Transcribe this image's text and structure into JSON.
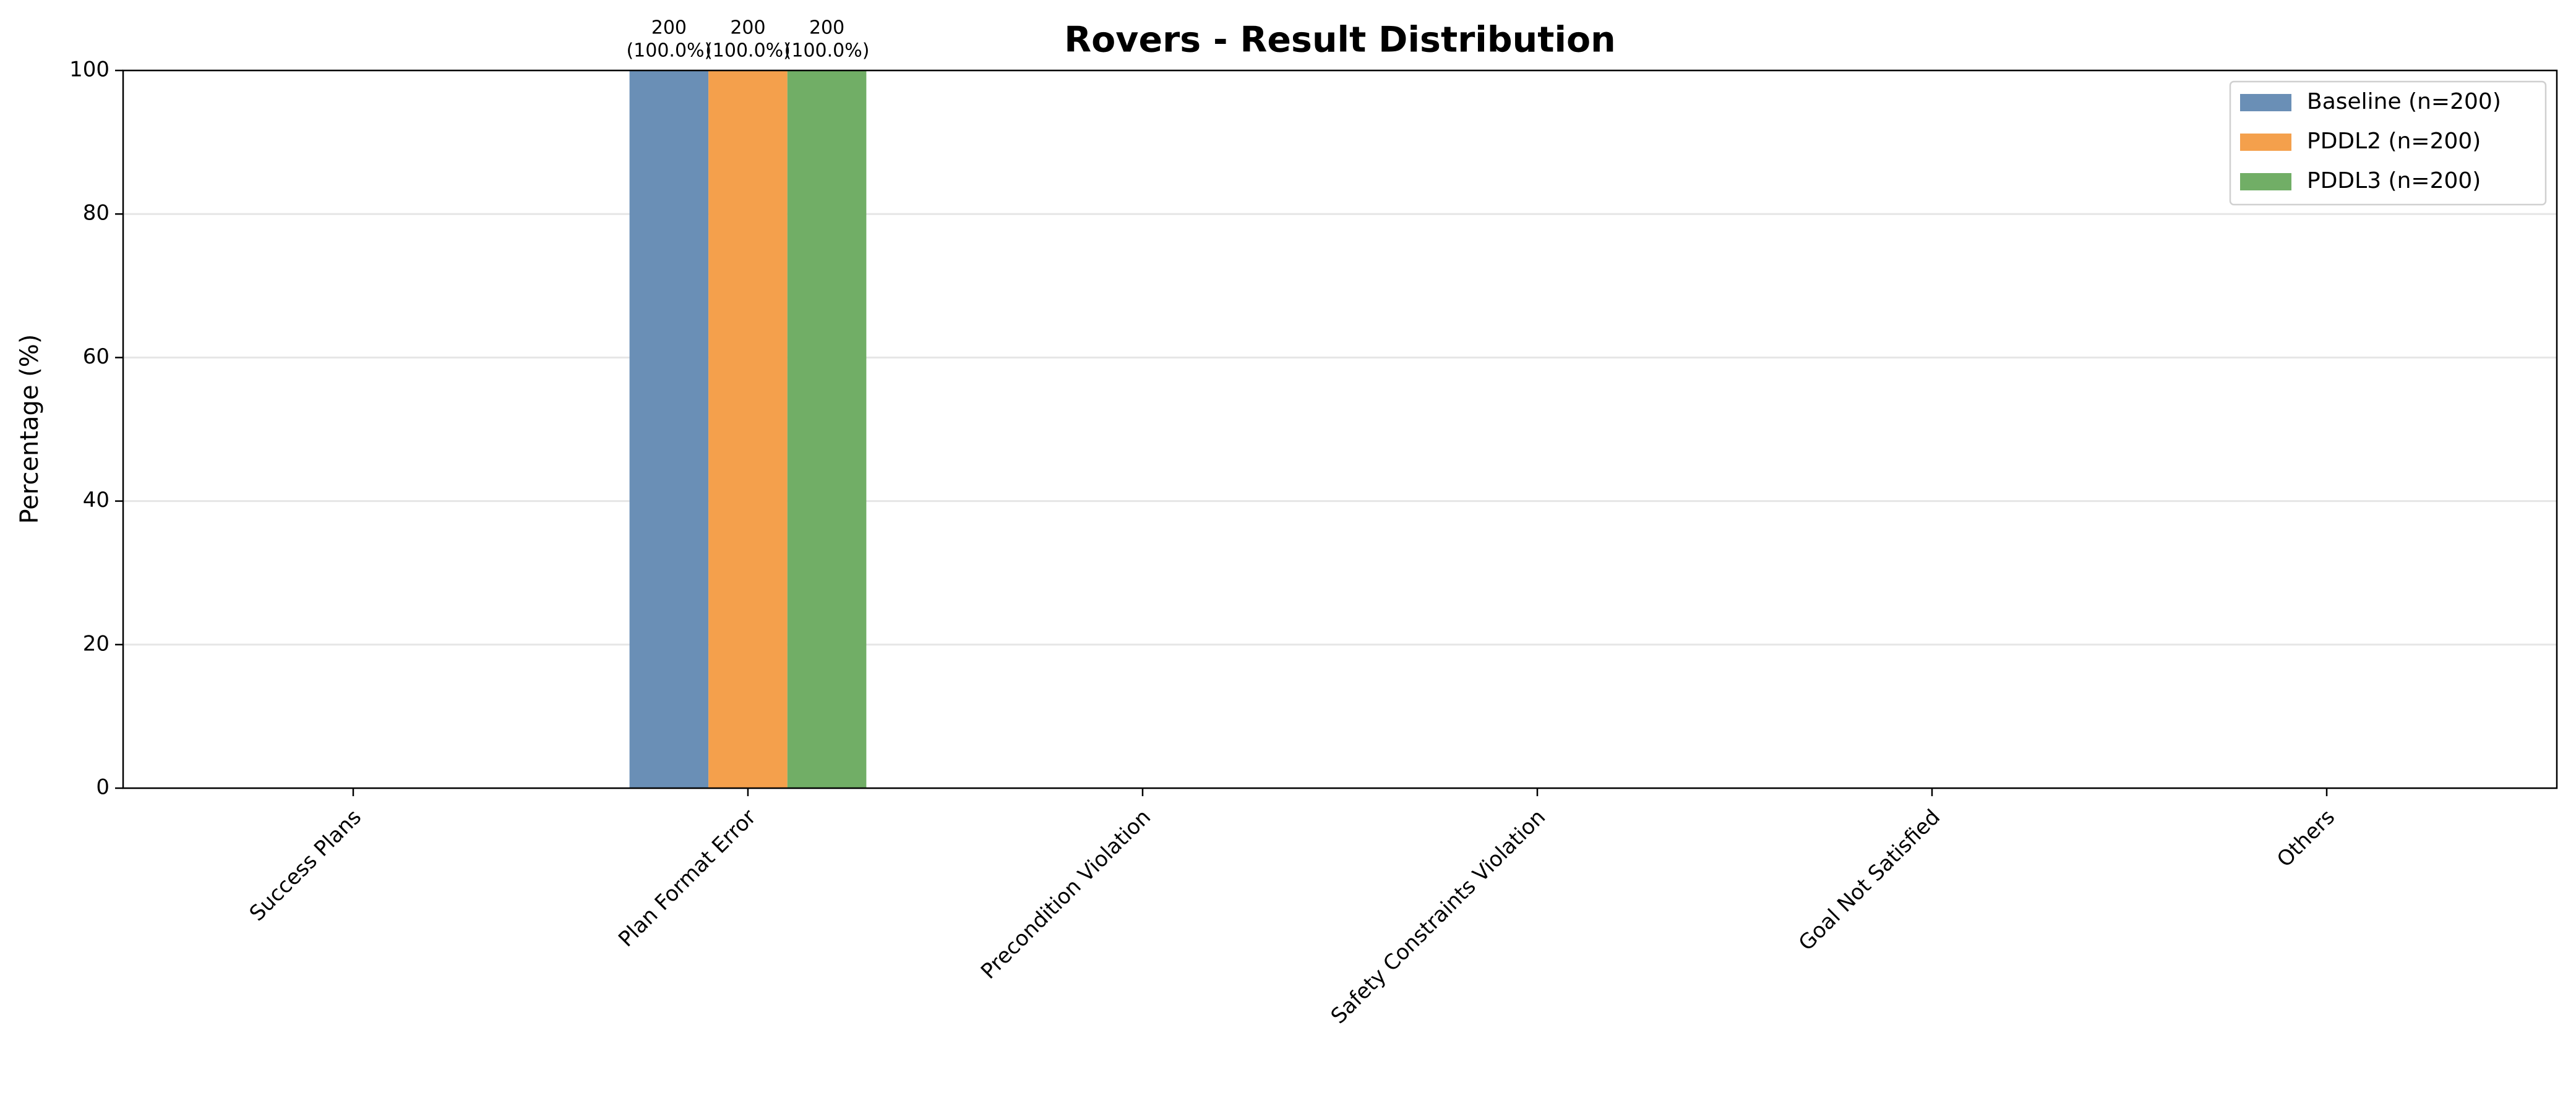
{
  "chart_data": {
    "type": "bar",
    "title": "Rovers - Result Distribution",
    "y_label": "Percentage (%)",
    "categories": [
      "Success Plans",
      "Plan Format Error",
      "Precondition Violation",
      "Safety Constraints Violation",
      "Goal Not Satisfied",
      "Others"
    ],
    "series": [
      {
        "name": "Baseline (n=200)",
        "color": "#6a8fb6",
        "values": [
          0,
          100,
          0,
          0,
          0,
          0
        ],
        "value_labels": [
          null,
          [
            "200",
            "(100.0%)"
          ],
          null,
          null,
          null,
          null
        ]
      },
      {
        "name": "PDDL2 (n=200)",
        "color": "#f4a04c",
        "values": [
          0,
          100,
          0,
          0,
          0,
          0
        ],
        "value_labels": [
          null,
          [
            "200",
            "(100.0%)"
          ],
          null,
          null,
          null,
          null
        ]
      },
      {
        "name": "PDDL3 (n=200)",
        "color": "#71ae66",
        "values": [
          0,
          100,
          0,
          0,
          0,
          0
        ],
        "value_labels": [
          null,
          [
            "200",
            "(100.0%)"
          ],
          null,
          null,
          null,
          null
        ]
      }
    ],
    "ylim": [
      0,
      100
    ],
    "yticks": [
      0,
      20,
      40,
      60,
      80,
      100
    ],
    "grid": true,
    "legend": "upper right"
  }
}
